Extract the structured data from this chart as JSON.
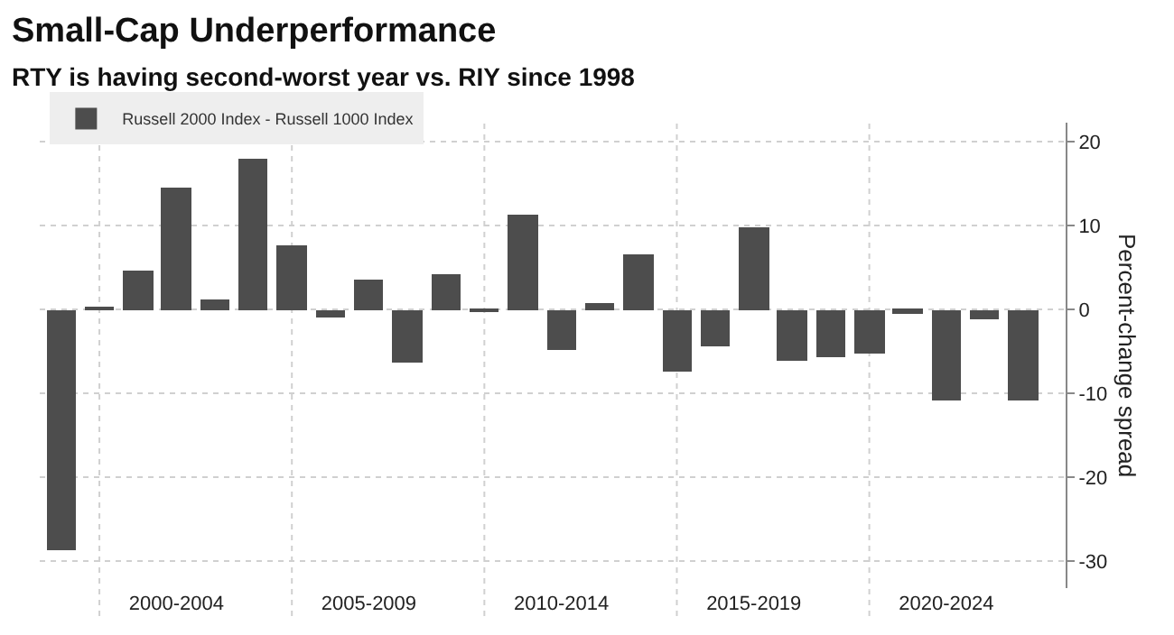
{
  "chart_data": {
    "type": "bar",
    "title": "Small-Cap Underperformance",
    "subtitle": "RTY is having second-worst year vs. RIY since 1998",
    "ylabel": "Percent-change spread",
    "categories": [
      null,
      null,
      null,
      "2000-2004",
      null,
      null,
      null,
      null,
      "2005-2009",
      null,
      null,
      null,
      null,
      "2010-2014",
      null,
      null,
      null,
      null,
      "2015-2019",
      null,
      null,
      null,
      null,
      "2020-2024",
      null,
      null
    ],
    "series": [
      {
        "name": "Russell 2000 Index - Russell 1000 Index",
        "color": "#4d4d4d",
        "values": [
          -28.7,
          0.2,
          4.6,
          14.6,
          1.3,
          17.9,
          7.6,
          -1.0,
          3.6,
          -6.4,
          4.2,
          -0.1,
          11.4,
          -4.8,
          0.7,
          6.6,
          -7.4,
          -4.4,
          9.8,
          -6.0,
          -5.6,
          -5.2,
          -0.4,
          -10.9,
          -1.1,
          -10.8
        ]
      }
    ],
    "ylim": [
      -33.2,
      22.3
    ],
    "yticks": [
      -30,
      -20,
      -10,
      0,
      10,
      20
    ],
    "grid": true,
    "legend": "top left"
  }
}
